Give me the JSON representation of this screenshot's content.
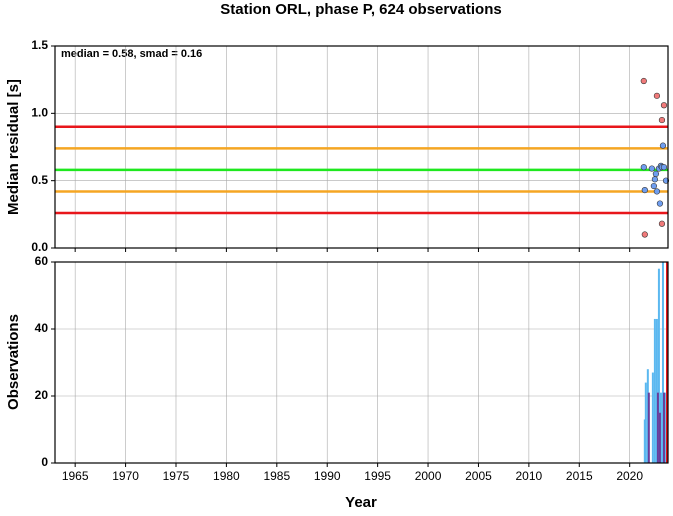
{
  "chart_data": [
    {
      "type": "scatter",
      "title": "Station ORL, phase P, 624 observations",
      "ylabel": "Median residual [s]",
      "annotation": "median = 0.58, smad = 0.16",
      "xlim": [
        1963,
        2023.8
      ],
      "ylim": [
        0,
        1.5
      ],
      "yticks": [
        {
          "value": 0,
          "label": "0.0"
        },
        0.5,
        {
          "value": 1,
          "label": "1.0"
        },
        1.5
      ],
      "grid": true,
      "hlines": [
        {
          "value": 0.9,
          "color": "#e8161b"
        },
        {
          "value": 0.74,
          "color": "#f5a623"
        },
        {
          "value": 0.58,
          "color": "#1ee81e"
        },
        {
          "value": 0.42,
          "color": "#f5a623"
        },
        {
          "value": 0.26,
          "color": "#e8161b"
        }
      ],
      "series": [
        {
          "color": "#f07a7a",
          "x": [
            2021.4,
            2022.7,
            2023.2,
            2023.4,
            2021.5,
            2023.2
          ],
          "values": [
            1.24,
            1.13,
            0.95,
            1.06,
            0.1,
            0.18
          ]
        },
        {
          "color": "#6f9ef0",
          "x": [
            2021.4,
            2021.5,
            2022.2,
            2022.4,
            2022.5,
            2022.6,
            2022.7,
            2022.9,
            2023.0,
            2023.1,
            2023.2,
            2023.3,
            2023.4,
            2023.6
          ],
          "values": [
            0.6,
            0.43,
            0.59,
            0.46,
            0.51,
            0.55,
            0.42,
            0.59,
            0.33,
            0.61,
            0.6,
            0.76,
            0.6,
            0.5
          ]
        }
      ]
    },
    {
      "type": "bar",
      "xlabel": "Year",
      "ylabel": "Observations",
      "xlim": [
        1963,
        2023.8
      ],
      "ylim": [
        0,
        60
      ],
      "xticks": [
        1965,
        1970,
        1975,
        1980,
        1985,
        1990,
        1995,
        2000,
        2005,
        2010,
        2015,
        2020
      ],
      "yticks": [
        0,
        20,
        40,
        60
      ],
      "grid": true,
      "series": [
        {
          "color": "#5bb8f0",
          "x": [
            2021.5,
            2021.6,
            2021.8,
            2022.3,
            2022.5,
            2022.7,
            2022.9,
            2023.1,
            2023.3,
            2023.5
          ],
          "values": [
            13,
            24,
            28,
            27,
            43,
            43,
            58,
            21,
            60,
            21
          ]
        },
        {
          "color": "#6a3d9a",
          "x": [
            2021.9,
            2022.8,
            2023.0,
            2023.4
          ],
          "values": [
            21,
            21,
            15,
            21
          ]
        },
        {
          "color": "#e8161b",
          "x": [
            2023.7
          ],
          "values": [
            60
          ]
        }
      ]
    }
  ]
}
